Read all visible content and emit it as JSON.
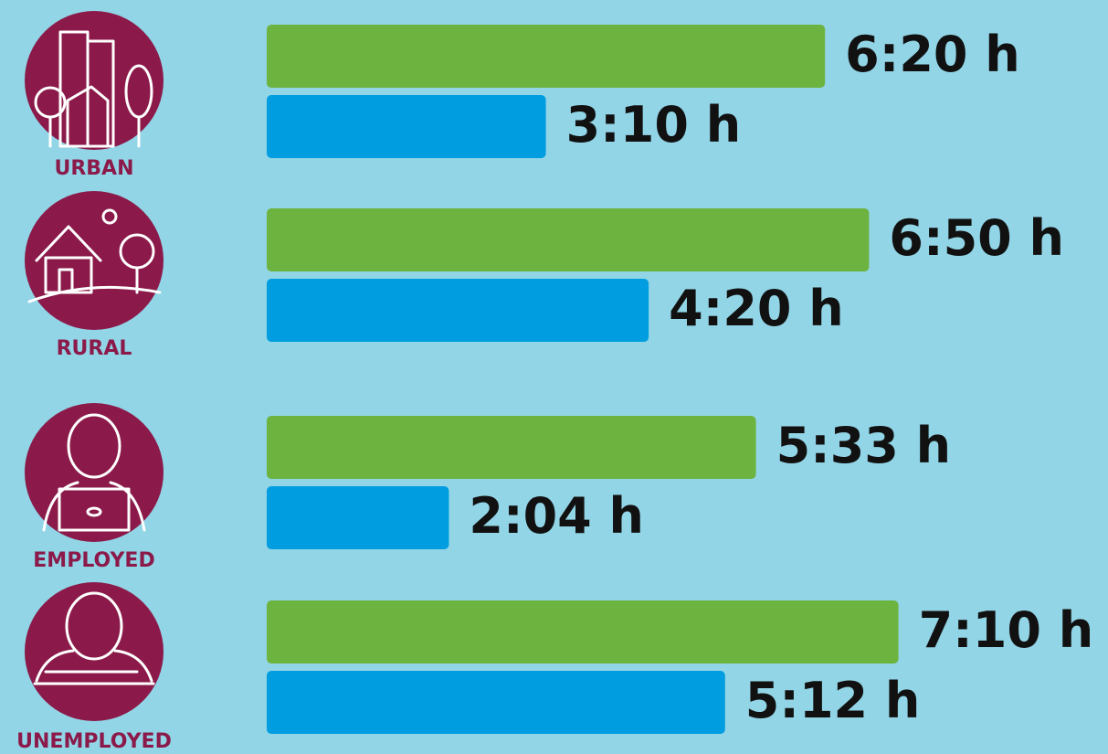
{
  "chart_data": {
    "type": "bar",
    "orientation": "horizontal",
    "categories": [
      "URBAN",
      "RURAL",
      "EMPLOYED",
      "UNEMPLOYED"
    ],
    "series": [
      {
        "color": "#6db33f",
        "values": [
          6.3333,
          6.8333,
          5.55,
          7.1667
        ],
        "value_labels": [
          "6:20 h",
          "6:50 h",
          "5:33 h",
          "7:10 h"
        ]
      },
      {
        "color": "#009ee0",
        "values": [
          3.1667,
          4.3333,
          2.0667,
          5.2
        ],
        "value_labels": [
          "3:10 h",
          "4:20 h",
          "2:04 h",
          "5:12 h"
        ]
      }
    ]
  }
}
